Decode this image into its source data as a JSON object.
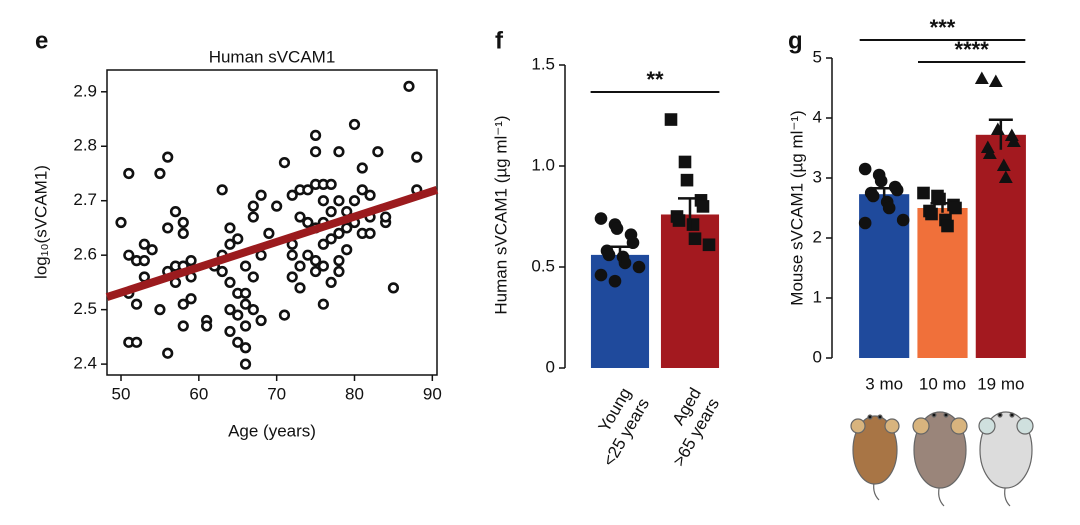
{
  "chart_data": [
    {
      "type": "scatter",
      "panel": "e",
      "title": "Human sVCAM1",
      "xlabel": "Age (years)",
      "ylabel": "log₁₀(sVCAM1)",
      "xlim": [
        48.2,
        90.6
      ],
      "ylim": [
        2.38,
        2.94
      ],
      "xticks": [
        50,
        60,
        70,
        80,
        90
      ],
      "yticks": [
        2.4,
        2.5,
        2.6,
        2.7,
        2.8,
        2.9
      ],
      "color": "#111111",
      "x": [
        50,
        51,
        51,
        51,
        51,
        52,
        52,
        52,
        53,
        53,
        53,
        54,
        55,
        55,
        56,
        56,
        56,
        56,
        57,
        57,
        57,
        58,
        58,
        58,
        58,
        58,
        59,
        59,
        59,
        61,
        61,
        62,
        63,
        63,
        63,
        64,
        64,
        64,
        64,
        64,
        65,
        65,
        65,
        65,
        66,
        66,
        66,
        66,
        66,
        66,
        67,
        67,
        67,
        67,
        68,
        68,
        68,
        69,
        70,
        71,
        71,
        72,
        72,
        72,
        72,
        73,
        73,
        73,
        73,
        74,
        74,
        74,
        75,
        75,
        75,
        75,
        75,
        75,
        76,
        76,
        76,
        76,
        76,
        76,
        77,
        77,
        77,
        77,
        78,
        78,
        78,
        78,
        78,
        79,
        79,
        79,
        80,
        80,
        80,
        81,
        81,
        81,
        82,
        82,
        82,
        83,
        84,
        84,
        85,
        87,
        88,
        88
      ],
      "values": [
        2.66,
        2.75,
        2.6,
        2.53,
        2.44,
        2.44,
        2.59,
        2.51,
        2.62,
        2.59,
        2.56,
        2.61,
        2.75,
        2.5,
        2.78,
        2.65,
        2.57,
        2.42,
        2.58,
        2.55,
        2.68,
        2.66,
        2.64,
        2.58,
        2.51,
        2.47,
        2.59,
        2.56,
        2.52,
        2.48,
        2.47,
        2.58,
        2.72,
        2.6,
        2.57,
        2.62,
        2.65,
        2.55,
        2.5,
        2.46,
        2.63,
        2.53,
        2.49,
        2.44,
        2.51,
        2.47,
        2.43,
        2.4,
        2.58,
        2.53,
        2.69,
        2.67,
        2.56,
        2.5,
        2.71,
        2.6,
        2.48,
        2.64,
        2.69,
        2.77,
        2.49,
        2.71,
        2.6,
        2.56,
        2.62,
        2.72,
        2.67,
        2.58,
        2.54,
        2.72,
        2.66,
        2.6,
        2.82,
        2.79,
        2.73,
        2.65,
        2.59,
        2.57,
        2.73,
        2.7,
        2.66,
        2.62,
        2.58,
        2.51,
        2.73,
        2.68,
        2.63,
        2.55,
        2.79,
        2.7,
        2.64,
        2.59,
        2.57,
        2.68,
        2.65,
        2.61,
        2.84,
        2.66,
        2.7,
        2.72,
        2.76,
        2.64,
        2.71,
        2.67,
        2.64,
        2.79,
        2.66,
        2.67,
        2.54,
        2.91,
        2.78,
        2.72
      ],
      "fit": {
        "x": [
          48.2,
          90.6
        ],
        "values": [
          2.523,
          2.72
        ],
        "color": "#9b1b1e"
      }
    },
    {
      "type": "bar",
      "panel": "f",
      "ylabel": "Human sVCAM1 (µg ml⁻¹)",
      "ylim": [
        0,
        1.5
      ],
      "yticks": [
        0,
        0.5,
        {
          "value": 1,
          "label": "1.0"
        },
        1.5
      ],
      "categories": [
        [
          "Young",
          "<25 years"
        ],
        [
          "Aged",
          ">65 years"
        ]
      ],
      "values": [
        0.56,
        0.76
      ],
      "errors": [
        0.04,
        0.08
      ],
      "colors": [
        "#1f4a9c",
        "#a3191f"
      ],
      "markers": [
        "circle",
        "square"
      ],
      "points": [
        [
          0.74,
          0.71,
          0.69,
          0.66,
          0.62,
          0.58,
          0.56,
          0.55,
          0.52,
          0.5,
          0.46,
          0.43
        ],
        [
          1.23,
          1.02,
          0.93,
          0.83,
          0.8,
          0.75,
          0.73,
          0.71,
          0.64,
          0.61
        ]
      ],
      "annotations": [
        {
          "text": "**",
          "from": 0,
          "to": 1
        }
      ]
    },
    {
      "type": "bar",
      "panel": "g",
      "ylabel": "Mouse sVCAM1 (µg ml⁻¹)",
      "ylim": [
        0,
        5
      ],
      "yticks": [
        0,
        1,
        2,
        3,
        4,
        5
      ],
      "categories": [
        [
          "3 mo"
        ],
        [
          "10 mo"
        ],
        [
          "19 mo"
        ]
      ],
      "values": [
        2.73,
        2.5,
        3.72
      ],
      "errors": [
        0.1,
        0.08,
        0.25
      ],
      "colors": [
        "#1f4a9c",
        "#f0703a",
        "#a3191f"
      ],
      "markers": [
        "circle",
        "square",
        "triangle"
      ],
      "points": [
        [
          3.15,
          3.05,
          2.95,
          2.85,
          2.8,
          2.75,
          2.7,
          2.6,
          2.5,
          2.3,
          2.25
        ],
        [
          2.75,
          2.7,
          2.65,
          2.55,
          2.5,
          2.45,
          2.4,
          2.3,
          2.2
        ],
        [
          4.65,
          4.6,
          3.8,
          3.7,
          3.6,
          3.5,
          3.4,
          3.2,
          3.0
        ]
      ],
      "annotations": [
        {
          "text": "***",
          "from": 0,
          "to": 2
        },
        {
          "text": "****",
          "from": 1,
          "to": 2
        }
      ]
    }
  ]
}
